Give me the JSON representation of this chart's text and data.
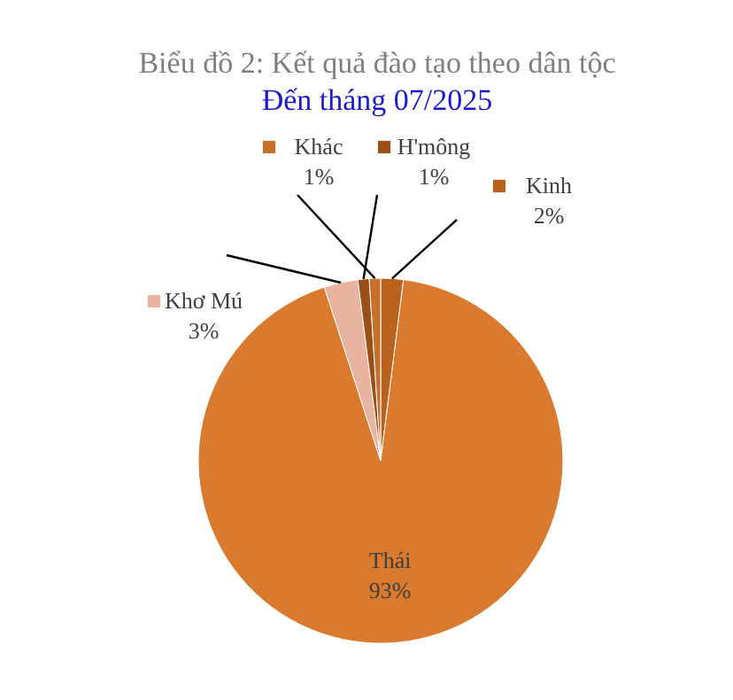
{
  "chart_data": {
    "type": "pie",
    "title": "Biểu đồ 2: Kết quả đào tạo theo dân tộc",
    "subtitle": "Đến tháng 07/2025",
    "categories": [
      "Kinh",
      "Thái",
      "Khơ Mú",
      "H'mông",
      "Khác"
    ],
    "values": [
      2,
      93,
      3,
      1,
      1
    ],
    "value_labels": [
      "2%",
      "93%",
      "3%",
      "1%",
      "1%"
    ],
    "colors": [
      "#b8621e",
      "#d97a2e",
      "#e8b4a0",
      "#9c4f18",
      "#c8702a"
    ],
    "legend": "top"
  }
}
